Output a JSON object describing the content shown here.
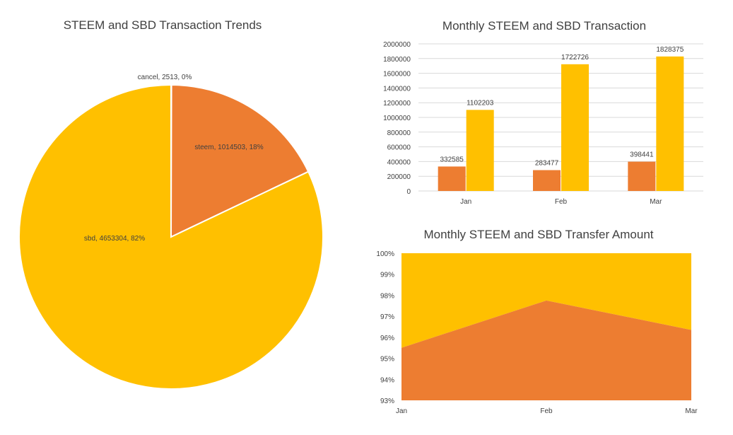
{
  "colors": {
    "steem": "#ED7D31",
    "sbd": "#FFC000",
    "grid": "#D9D9D9",
    "text": "#404040"
  },
  "chart_data": [
    {
      "type": "pie",
      "title": "STEEM and SBD Transaction Trends",
      "slices": [
        {
          "name": "cancel",
          "value": 2513,
          "percent": 0,
          "label": "cancel, 2513, 0%"
        },
        {
          "name": "steem",
          "value": 1014503,
          "percent": 18,
          "label": "steem, 1014503, 18%"
        },
        {
          "name": "sbd",
          "value": 4653304,
          "percent": 82,
          "label": "sbd, 4653304, 82%"
        }
      ]
    },
    {
      "type": "bar",
      "title": "Monthly STEEM and SBD Transaction",
      "categories": [
        "Jan",
        "Feb",
        "Mar"
      ],
      "series": [
        {
          "name": "steem",
          "values": [
            332585,
            283477,
            398441
          ],
          "labels": [
            "332585",
            "283477",
            "398441"
          ]
        },
        {
          "name": "sbd",
          "values": [
            1102203,
            1722726,
            1828375
          ],
          "labels": [
            "1102203",
            "1722726",
            "1828375"
          ]
        }
      ],
      "ylim": [
        0,
        2000000
      ],
      "yticks": [
        "0",
        "200000",
        "400000",
        "600000",
        "800000",
        "1000000",
        "1200000",
        "1400000",
        "1600000",
        "1800000",
        "2000000"
      ]
    },
    {
      "type": "area",
      "stacked": "percent",
      "title": "Monthly STEEM and SBD Transfer Amount",
      "categories": [
        "Jan",
        "Feb",
        "Mar"
      ],
      "series": [
        {
          "name": "steem",
          "values": [
            95.5,
            97.75,
            96.35
          ]
        },
        {
          "name": "sbd",
          "values": [
            4.5,
            2.25,
            3.65
          ]
        }
      ],
      "ylim": [
        93,
        100
      ],
      "yticks": [
        "93%",
        "94%",
        "95%",
        "96%",
        "97%",
        "98%",
        "99%",
        "100%"
      ]
    }
  ]
}
